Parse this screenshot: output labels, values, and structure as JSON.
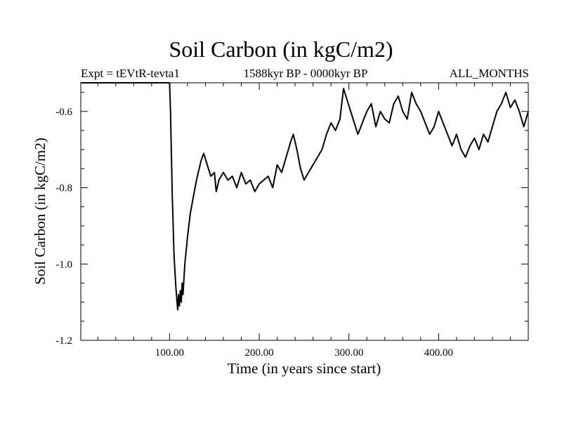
{
  "chart_data": {
    "type": "line",
    "title": "Soil Carbon (in kgC/m2)",
    "subtitle_left": "Expt = tEVtR-tevta1",
    "subtitle_center": "1588kyr BP - 0000kyr BP",
    "subtitle_right": "ALL_MONTHS",
    "xlabel": "Time (in years since start)",
    "ylabel": "Soil Carbon (in kgC/m2)",
    "xlim": [
      1,
      500
    ],
    "ylim": [
      -1.2,
      -0.525
    ],
    "x_ticks": [
      100,
      200,
      300,
      400
    ],
    "x_tick_labels": [
      "100.00",
      "200.00",
      "300.00",
      "400.00"
    ],
    "y_ticks": [
      -1.2,
      -1.0,
      -0.8,
      -0.6
    ],
    "y_tick_labels": [
      "-1.2",
      "-1.0",
      "-0.8",
      "-0.6"
    ],
    "grid": false,
    "series": [
      {
        "name": "Soil Carbon",
        "x": [
          1,
          100,
          101,
          103,
          105,
          107,
          108,
          109,
          110,
          111,
          112,
          113,
          114,
          115,
          117,
          120,
          123,
          126,
          130,
          135,
          138,
          142,
          146,
          150,
          152,
          155,
          160,
          165,
          170,
          175,
          180,
          185,
          190,
          195,
          200,
          205,
          210,
          215,
          220,
          225,
          230,
          235,
          238,
          242,
          246,
          250,
          255,
          260,
          265,
          270,
          275,
          280,
          285,
          290,
          294,
          298,
          302,
          306,
          310,
          315,
          320,
          325,
          330,
          335,
          340,
          345,
          350,
          355,
          360,
          365,
          370,
          375,
          380,
          385,
          390,
          395,
          400,
          405,
          410,
          415,
          420,
          425,
          430,
          435,
          440,
          445,
          450,
          455,
          460,
          465,
          470,
          475,
          480,
          485,
          490,
          495,
          500
        ],
        "values": [
          -0.525,
          -0.525,
          -0.6,
          -0.82,
          -0.98,
          -1.06,
          -1.09,
          -1.12,
          -1.08,
          -1.11,
          -1.07,
          -1.1,
          -1.05,
          -1.08,
          -1.0,
          -0.93,
          -0.87,
          -0.83,
          -0.78,
          -0.73,
          -0.71,
          -0.74,
          -0.77,
          -0.76,
          -0.81,
          -0.78,
          -0.76,
          -0.78,
          -0.77,
          -0.8,
          -0.76,
          -0.79,
          -0.78,
          -0.81,
          -0.79,
          -0.78,
          -0.77,
          -0.8,
          -0.74,
          -0.76,
          -0.72,
          -0.68,
          -0.66,
          -0.7,
          -0.75,
          -0.78,
          -0.76,
          -0.74,
          -0.72,
          -0.7,
          -0.66,
          -0.63,
          -0.65,
          -0.62,
          -0.54,
          -0.57,
          -0.6,
          -0.63,
          -0.66,
          -0.63,
          -0.6,
          -0.58,
          -0.64,
          -0.6,
          -0.62,
          -0.63,
          -0.58,
          -0.56,
          -0.6,
          -0.62,
          -0.55,
          -0.58,
          -0.6,
          -0.63,
          -0.66,
          -0.64,
          -0.6,
          -0.63,
          -0.66,
          -0.69,
          -0.66,
          -0.7,
          -0.72,
          -0.69,
          -0.67,
          -0.7,
          -0.66,
          -0.68,
          -0.64,
          -0.6,
          -0.58,
          -0.55,
          -0.59,
          -0.57,
          -0.6,
          -0.64,
          -0.6
        ]
      }
    ]
  }
}
